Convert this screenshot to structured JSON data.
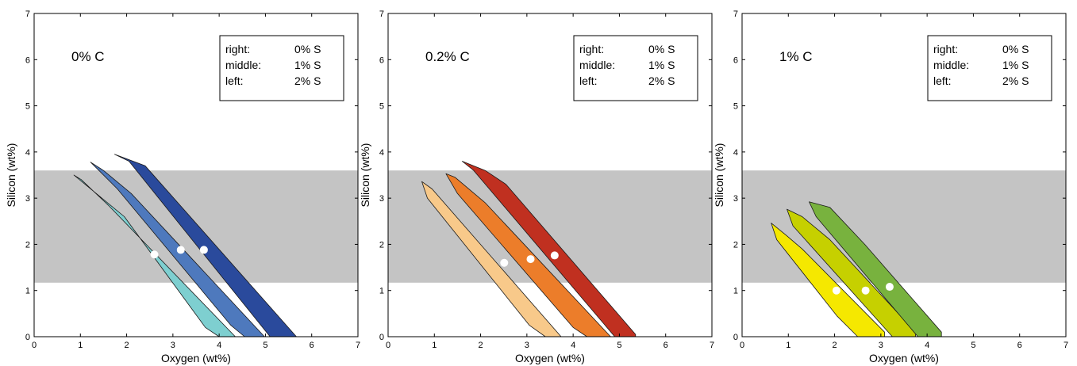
{
  "chart_data": [
    {
      "type": "area",
      "title": "0% C",
      "xlabel": "Oxygen (wt%)",
      "ylabel": "Silicon (wt%)",
      "xlim": [
        0,
        7
      ],
      "ylim": [
        0,
        7
      ],
      "xticks": [
        "0",
        "1",
        "2",
        "3",
        "4",
        "5",
        "6",
        "7"
      ],
      "yticks": [
        "0",
        "1",
        "2",
        "3",
        "4",
        "5",
        "6",
        "7"
      ],
      "grid": false,
      "shaded_band": {
        "y": [
          1.17,
          3.6
        ],
        "color": "#c4c4c4"
      },
      "legend": {
        "placement": "top-right",
        "rows": [
          {
            "label": "right:",
            "value": "0% S"
          },
          {
            "label": "middle:",
            "value": "1% S"
          },
          {
            "label": "left:",
            "value": "2% S"
          }
        ]
      },
      "series": [
        {
          "color": "#7ecfd0",
          "polygon": [
            [
              0.86,
              3.5
            ],
            [
              1.02,
              3.4
            ],
            [
              1.6,
              2.85
            ],
            [
              4.35,
              0
            ],
            [
              4.0,
              0
            ],
            [
              3.7,
              0.2
            ],
            [
              1.95,
              2.6
            ],
            [
              0.86,
              3.5
            ]
          ],
          "point": [
            2.6,
            1.78
          ]
        },
        {
          "color": "#4e79bd",
          "polygon": [
            [
              1.22,
              3.78
            ],
            [
              1.5,
              3.6
            ],
            [
              2.1,
              3.1
            ],
            [
              4.98,
              0
            ],
            [
              4.55,
              0
            ],
            [
              4.25,
              0.25
            ],
            [
              1.8,
              3.2
            ],
            [
              1.22,
              3.78
            ]
          ],
          "point": [
            3.17,
            1.88
          ]
        },
        {
          "color": "#2a4a9c",
          "polygon": [
            [
              1.74,
              3.95
            ],
            [
              2.4,
              3.7
            ],
            [
              5.67,
              0
            ],
            [
              5.1,
              0
            ],
            [
              2.05,
              3.8
            ],
            [
              1.74,
              3.95
            ]
          ],
          "point": [
            3.67,
            1.88
          ]
        }
      ]
    },
    {
      "type": "area",
      "title": "0.2% C",
      "xlabel": "Oxygen (wt%)",
      "ylabel": "Silicon (wt%)",
      "xlim": [
        0,
        7
      ],
      "ylim": [
        0,
        7
      ],
      "xticks": [
        "0",
        "1",
        "2",
        "3",
        "4",
        "5",
        "6",
        "7"
      ],
      "yticks": [
        "0",
        "1",
        "2",
        "3",
        "4",
        "5",
        "6",
        "7"
      ],
      "grid": false,
      "shaded_band": {
        "y": [
          1.17,
          3.6
        ],
        "color": "#c4c4c4"
      },
      "legend": {
        "placement": "top-right",
        "rows": [
          {
            "label": "right:",
            "value": "0% S"
          },
          {
            "label": "middle:",
            "value": "1% S"
          },
          {
            "label": "left:",
            "value": "2% S"
          }
        ]
      },
      "series": [
        {
          "color": "#f8c98a",
          "polygon": [
            [
              0.73,
              3.36
            ],
            [
              0.95,
              3.2
            ],
            [
              3.74,
              0
            ],
            [
              3.4,
              0
            ],
            [
              3.05,
              0.25
            ],
            [
              0.85,
              3.0
            ],
            [
              0.73,
              3.36
            ]
          ],
          "point": [
            2.51,
            1.6
          ]
        },
        {
          "color": "#ec7d2a",
          "polygon": [
            [
              1.25,
              3.53
            ],
            [
              1.45,
              3.45
            ],
            [
              2.1,
              2.9
            ],
            [
              4.81,
              0
            ],
            [
              4.3,
              0
            ],
            [
              4.0,
              0.2
            ],
            [
              1.5,
              3.1
            ],
            [
              1.25,
              3.53
            ]
          ],
          "point": [
            3.08,
            1.68
          ]
        },
        {
          "color": "#c03020",
          "polygon": [
            [
              1.6,
              3.8
            ],
            [
              2.1,
              3.6
            ],
            [
              2.55,
              3.3
            ],
            [
              5.35,
              0.05
            ],
            [
              5.35,
              0
            ],
            [
              4.9,
              0
            ],
            [
              1.85,
              3.6
            ],
            [
              1.6,
              3.8
            ]
          ],
          "point": [
            3.6,
            1.76
          ]
        }
      ]
    },
    {
      "type": "area",
      "title": "1% C",
      "xlabel": "Oxygen (wt%)",
      "ylabel": "Silicon (wt%)",
      "xlim": [
        0,
        7
      ],
      "ylim": [
        0,
        7
      ],
      "xticks": [
        "0",
        "1",
        "2",
        "3",
        "4",
        "5",
        "6",
        "7"
      ],
      "yticks": [
        "0",
        "1",
        "2",
        "3",
        "4",
        "5",
        "6",
        "7"
      ],
      "grid": false,
      "shaded_band": {
        "y": [
          1.17,
          3.6
        ],
        "color": "#c4c4c4"
      },
      "legend": {
        "placement": "top-right",
        "rows": [
          {
            "label": "right:",
            "value": "0% S"
          },
          {
            "label": "middle:",
            "value": "1% S"
          },
          {
            "label": "left:",
            "value": "2% S"
          }
        ]
      },
      "series": [
        {
          "color": "#f5e800",
          "polygon": [
            [
              0.63,
              2.46
            ],
            [
              0.95,
              2.2
            ],
            [
              1.3,
              1.9
            ],
            [
              3.08,
              0.1
            ],
            [
              3.08,
              0
            ],
            [
              2.5,
              0
            ],
            [
              2.05,
              0.45
            ],
            [
              0.75,
              2.1
            ],
            [
              0.63,
              2.46
            ]
          ],
          "point": [
            2.04,
            1.0
          ]
        },
        {
          "color": "#c6d000",
          "polygon": [
            [
              0.97,
              2.76
            ],
            [
              1.3,
              2.6
            ],
            [
              1.9,
              2.1
            ],
            [
              3.75,
              0.1
            ],
            [
              3.75,
              0
            ],
            [
              3.25,
              0
            ],
            [
              1.1,
              2.4
            ],
            [
              0.97,
              2.76
            ]
          ],
          "point": [
            2.67,
            1.0
          ]
        },
        {
          "color": "#78b23e",
          "polygon": [
            [
              1.45,
              2.92
            ],
            [
              1.9,
              2.8
            ],
            [
              2.65,
              2.0
            ],
            [
              4.31,
              0.1
            ],
            [
              4.31,
              0
            ],
            [
              3.8,
              0
            ],
            [
              1.6,
              2.6
            ],
            [
              1.45,
              2.92
            ]
          ],
          "point": [
            3.19,
            1.08
          ]
        }
      ]
    }
  ]
}
